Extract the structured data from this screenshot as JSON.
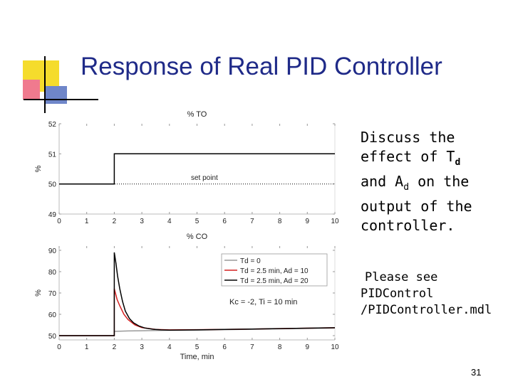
{
  "slide": {
    "title": "Response of Real PID Controller",
    "discussion": [
      "Discuss the",
      "effect of T",
      "d",
      "and A",
      "d",
      " on the",
      "output of the",
      "controller."
    ],
    "see_also": [
      "Please see",
      "PIDControl",
      "/PIDController.mdl"
    ],
    "page_number": "31",
    "colors": {
      "title": "#1f2a88",
      "deco_yellow": "#f5dc2c",
      "deco_pink": "#f07a8e",
      "deco_blue": "#6f86c9"
    }
  },
  "chart_data": [
    {
      "type": "line",
      "title": "% TO",
      "ylabel": "%",
      "xlabel": "",
      "xlim": [
        0,
        10
      ],
      "ylim": [
        49,
        52
      ],
      "xticks": [
        "0",
        "1",
        "2",
        "3",
        "4",
        "5",
        "6",
        "7",
        "8",
        "9",
        "10"
      ],
      "yticks": [
        "49",
        "50",
        "51",
        "52"
      ],
      "annotations": [
        "set point"
      ],
      "series": [
        {
          "color": "#000000",
          "style": "solid",
          "x": [
            0,
            2,
            2,
            10
          ],
          "y": [
            50,
            50,
            51,
            51
          ]
        },
        {
          "name": "set point",
          "color": "#000000",
          "style": "dotted",
          "x": [
            0,
            10
          ],
          "y": [
            50,
            50
          ]
        }
      ]
    },
    {
      "type": "line",
      "title": "% CO",
      "ylabel": "%",
      "xlabel": "Time, min",
      "xlim": [
        0,
        10
      ],
      "ylim": [
        48,
        92
      ],
      "xticks": [
        "0",
        "1",
        "2",
        "3",
        "4",
        "5",
        "6",
        "7",
        "8",
        "9",
        "10"
      ],
      "yticks": [
        "50",
        "60",
        "70",
        "80",
        "90"
      ],
      "legend": "top-right",
      "annotations": [
        "Kc = -2, Ti = 10 min"
      ],
      "series": [
        {
          "name": "Td = 0",
          "color": "#9a9a9a",
          "x": [
            0,
            2,
            2,
            2.2,
            2.5,
            3,
            3.5,
            4,
            5,
            6,
            7,
            8,
            9,
            10
          ],
          "y": [
            50,
            50,
            52,
            52.1,
            52.2,
            52.3,
            52.4,
            52.5,
            52.6,
            52.8,
            53,
            53.2,
            53.4,
            53.6
          ]
        },
        {
          "name": "Td = 2.5 min, Ad = 10",
          "color": "#d42020",
          "x": [
            0,
            2,
            2,
            2.1,
            2.2,
            2.35,
            2.5,
            2.75,
            3,
            3.5,
            4,
            5,
            6,
            7,
            8,
            9,
            10
          ],
          "y": [
            50,
            50,
            72,
            67,
            64,
            60,
            57.5,
            55,
            53.8,
            52.9,
            52.7,
            52.8,
            52.9,
            53.1,
            53.3,
            53.5,
            53.7
          ]
        },
        {
          "name": "Td = 2.5 min, Ad = 20",
          "color": "#000000",
          "x": [
            0,
            2,
            2,
            2.06,
            2.12,
            2.2,
            2.3,
            2.4,
            2.55,
            2.7,
            2.9,
            3.1,
            3.4,
            3.7,
            4,
            5,
            6,
            7,
            8,
            9,
            10
          ],
          "y": [
            50,
            50,
            89,
            84,
            78,
            72,
            66,
            61.5,
            58,
            56,
            54.5,
            53.6,
            53,
            52.7,
            52.6,
            52.7,
            52.9,
            53.1,
            53.3,
            53.5,
            53.7
          ]
        }
      ]
    }
  ]
}
